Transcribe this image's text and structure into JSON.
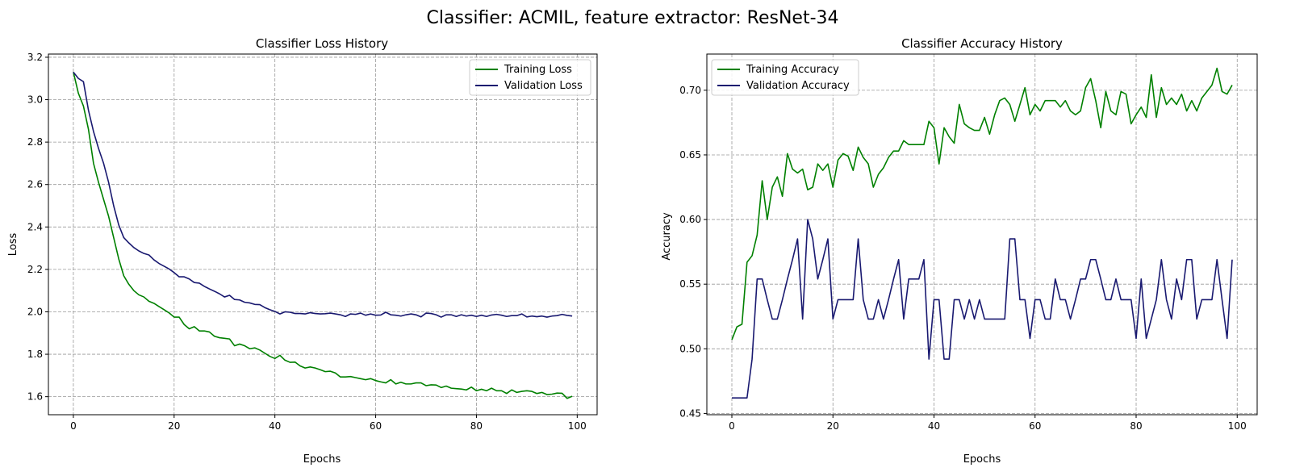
{
  "suptitle": "Classifier: ACMIL, feature extractor: ResNet-34",
  "colors": {
    "train": "#008000",
    "val": "#191970",
    "grid": "#999999"
  },
  "chart_data": [
    {
      "type": "line",
      "title": "Classifier Loss History",
      "xlabel": "Epochs",
      "ylabel": "Loss",
      "xlim": [
        -4.95,
        103.95
      ],
      "ylim": [
        1.515,
        3.215
      ],
      "xticks": [
        0,
        20,
        40,
        60,
        80,
        100
      ],
      "yticks": [
        1.6,
        1.8,
        2.0,
        2.2,
        2.4,
        2.6,
        2.8,
        3.0,
        3.2
      ],
      "ytick_labels": [
        "1.6",
        "1.8",
        "2.0",
        "2.2",
        "2.4",
        "2.6",
        "2.8",
        "3.0",
        "3.2"
      ],
      "grid": true,
      "legend_position": "top-right",
      "series": [
        {
          "name": "Training Loss",
          "color": "#008000",
          "values": [
            3.13,
            3.03,
            2.97,
            2.86,
            2.7,
            2.61,
            2.53,
            2.45,
            2.35,
            2.25,
            2.17,
            2.13,
            2.1,
            2.08,
            2.07,
            2.05,
            2.04,
            2.025,
            2.01,
            1.995,
            1.975,
            1.975,
            1.94,
            1.92,
            1.93,
            1.91,
            1.91,
            1.905,
            1.885,
            1.878,
            1.875,
            1.872,
            1.84,
            1.848,
            1.84,
            1.826,
            1.83,
            1.82,
            1.805,
            1.79,
            1.78,
            1.795,
            1.772,
            1.762,
            1.763,
            1.745,
            1.735,
            1.74,
            1.735,
            1.727,
            1.718,
            1.72,
            1.712,
            1.693,
            1.693,
            1.695,
            1.69,
            1.685,
            1.68,
            1.685,
            1.676,
            1.67,
            1.665,
            1.68,
            1.66,
            1.668,
            1.66,
            1.66,
            1.665,
            1.665,
            1.652,
            1.656,
            1.655,
            1.643,
            1.65,
            1.64,
            1.638,
            1.636,
            1.632,
            1.645,
            1.628,
            1.635,
            1.628,
            1.64,
            1.628,
            1.628,
            1.615,
            1.632,
            1.62,
            1.625,
            1.628,
            1.625,
            1.615,
            1.62,
            1.61,
            1.612,
            1.617,
            1.616,
            1.592,
            1.602
          ]
        },
        {
          "name": "Validation Loss",
          "color": "#191970",
          "values": [
            3.13,
            3.1,
            3.085,
            2.95,
            2.85,
            2.77,
            2.7,
            2.61,
            2.5,
            2.41,
            2.35,
            2.325,
            2.303,
            2.287,
            2.275,
            2.268,
            2.245,
            2.228,
            2.215,
            2.202,
            2.185,
            2.165,
            2.165,
            2.155,
            2.138,
            2.135,
            2.12,
            2.108,
            2.097,
            2.085,
            2.07,
            2.078,
            2.058,
            2.056,
            2.045,
            2.042,
            2.035,
            2.034,
            2.02,
            2.01,
            2.002,
            1.99,
            2.0,
            1.998,
            1.992,
            1.992,
            1.99,
            1.996,
            1.992,
            1.99,
            1.991,
            1.994,
            1.99,
            1.986,
            1.978,
            1.99,
            1.988,
            1.994,
            1.984,
            1.99,
            1.984,
            1.985,
            1.998,
            1.986,
            1.984,
            1.98,
            1.986,
            1.99,
            1.986,
            1.976,
            1.994,
            1.992,
            1.986,
            1.975,
            1.986,
            1.986,
            1.978,
            1.986,
            1.98,
            1.984,
            1.978,
            1.984,
            1.978,
            1.985,
            1.988,
            1.984,
            1.978,
            1.982,
            1.982,
            1.99,
            1.976,
            1.98,
            1.977,
            1.98,
            1.975,
            1.98,
            1.982,
            1.988,
            1.983,
            1.98
          ]
        }
      ]
    },
    {
      "type": "line",
      "title": "Classifier Accuracy History",
      "xlabel": "Epochs",
      "ylabel": "Accuracy",
      "xlim": [
        -4.95,
        103.95
      ],
      "ylim": [
        0.449,
        0.728
      ],
      "xticks": [
        0,
        20,
        40,
        60,
        80,
        100
      ],
      "yticks": [
        0.45,
        0.5,
        0.55,
        0.6,
        0.65,
        0.7
      ],
      "ytick_labels": [
        "0.45",
        "0.50",
        "0.55",
        "0.60",
        "0.65",
        "0.70"
      ],
      "grid": true,
      "legend_position": "top-left",
      "series": [
        {
          "name": "Training Accuracy",
          "color": "#008000",
          "values": [
            0.507,
            0.517,
            0.519,
            0.567,
            0.572,
            0.588,
            0.63,
            0.6,
            0.625,
            0.633,
            0.618,
            0.651,
            0.639,
            0.636,
            0.639,
            0.623,
            0.625,
            0.643,
            0.638,
            0.643,
            0.625,
            0.646,
            0.651,
            0.649,
            0.638,
            0.656,
            0.648,
            0.643,
            0.625,
            0.635,
            0.64,
            0.648,
            0.653,
            0.653,
            0.661,
            0.658,
            0.658,
            0.658,
            0.658,
            0.676,
            0.671,
            0.643,
            0.671,
            0.664,
            0.659,
            0.689,
            0.674,
            0.671,
            0.669,
            0.669,
            0.679,
            0.666,
            0.681,
            0.692,
            0.694,
            0.689,
            0.676,
            0.689,
            0.702,
            0.681,
            0.689,
            0.684,
            0.692,
            0.692,
            0.692,
            0.687,
            0.692,
            0.684,
            0.681,
            0.684,
            0.702,
            0.709,
            0.692,
            0.671,
            0.699,
            0.684,
            0.681,
            0.699,
            0.697,
            0.674,
            0.681,
            0.687,
            0.679,
            0.712,
            0.679,
            0.702,
            0.689,
            0.694,
            0.689,
            0.697,
            0.684,
            0.692,
            0.684,
            0.694,
            0.699,
            0.704,
            0.717,
            0.699,
            0.697,
            0.704
          ]
        },
        {
          "name": "Validation Accuracy",
          "color": "#191970",
          "values": [
            0.462,
            0.462,
            0.462,
            0.462,
            0.492,
            0.554,
            0.554,
            0.538,
            0.523,
            0.523,
            0.538,
            0.554,
            0.569,
            0.585,
            0.523,
            0.6,
            0.585,
            0.554,
            0.569,
            0.585,
            0.523,
            0.538,
            0.538,
            0.538,
            0.538,
            0.585,
            0.538,
            0.523,
            0.523,
            0.538,
            0.523,
            0.538,
            0.554,
            0.569,
            0.523,
            0.554,
            0.554,
            0.554,
            0.569,
            0.492,
            0.538,
            0.538,
            0.492,
            0.492,
            0.538,
            0.538,
            0.523,
            0.538,
            0.523,
            0.538,
            0.523,
            0.523,
            0.523,
            0.523,
            0.523,
            0.585,
            0.585,
            0.538,
            0.538,
            0.508,
            0.538,
            0.538,
            0.523,
            0.523,
            0.554,
            0.538,
            0.538,
            0.523,
            0.538,
            0.554,
            0.554,
            0.569,
            0.569,
            0.554,
            0.538,
            0.538,
            0.554,
            0.538,
            0.538,
            0.538,
            0.508,
            0.554,
            0.508,
            0.523,
            0.538,
            0.569,
            0.538,
            0.523,
            0.554,
            0.538,
            0.569,
            0.569,
            0.523,
            0.538,
            0.538,
            0.538,
            0.569,
            0.538,
            0.508,
            0.569
          ]
        }
      ]
    }
  ]
}
